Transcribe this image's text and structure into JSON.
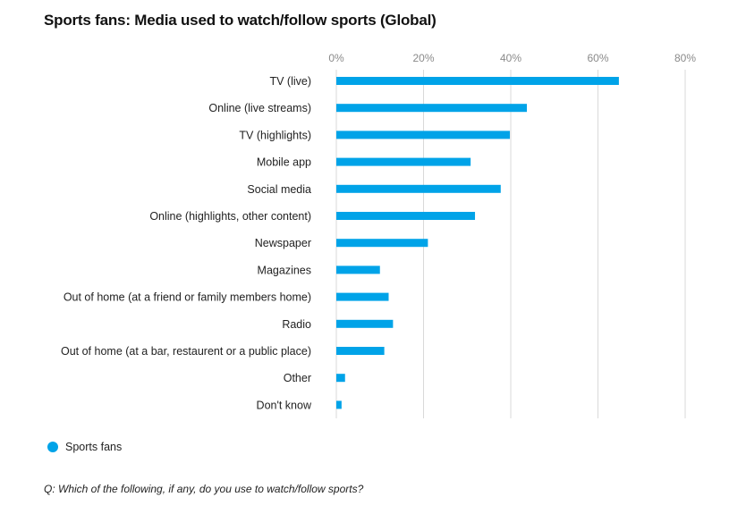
{
  "colors": {
    "bar": "#00a3e8",
    "grid": "#d9d9d9",
    "tick_text": "#8a8a8a"
  },
  "chart_data": {
    "type": "bar",
    "orientation": "horizontal",
    "title": "Sports fans: Media used to watch/follow sports (Global)",
    "xlabel": "",
    "ylabel": "",
    "xlim": [
      0,
      80
    ],
    "x_ticks": [
      "0%",
      "20%",
      "40%",
      "60%",
      "80%"
    ],
    "x_tick_values": [
      0,
      20,
      40,
      60,
      80
    ],
    "grid": true,
    "legend_position": "bottom-left",
    "categories": [
      "TV (live)",
      "Online (live streams)",
      "TV (highlights)",
      "Mobile app",
      "Social media",
      "Online (highlights, other content)",
      "Newspaper",
      "Magazines",
      "Out of home (at a friend or family members home)",
      "Radio",
      "Out of home (at a bar, restaurent or a public place)",
      "Other",
      "Don't know"
    ],
    "series": [
      {
        "name": "Sports fans",
        "values": [
          64.8,
          43.7,
          39.8,
          30.8,
          37.7,
          31.8,
          21.0,
          10.0,
          12.0,
          13.0,
          11.0,
          2.0,
          1.2
        ]
      }
    ],
    "question": "Q: Which of the following, if any, do you use to watch/follow sports?"
  }
}
